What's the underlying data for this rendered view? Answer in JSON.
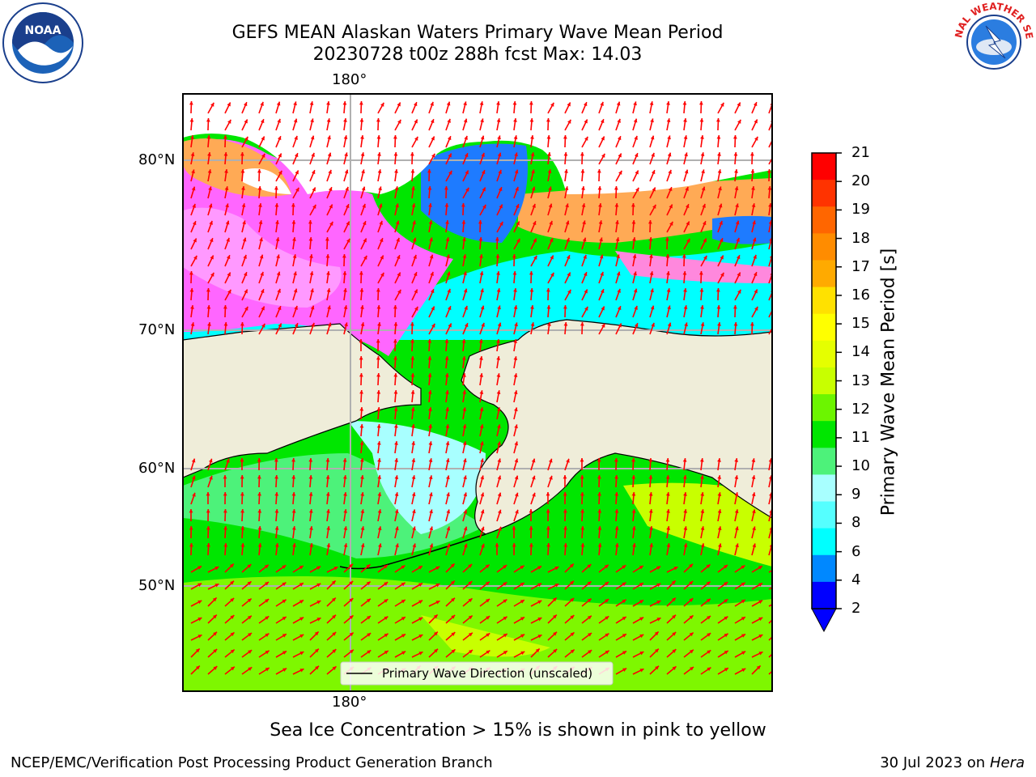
{
  "title": {
    "line1": "GEFS MEAN Alaskan Waters Primary Wave Mean Period",
    "line2": "20230728 t00z 288h fcst   Max: 14.03"
  },
  "logos": {
    "left": {
      "icon": "noaa-logo-icon",
      "text": "NOAA"
    },
    "right": {
      "icon": "nws-logo-icon",
      "text": "NATIONAL WEATHER SERVICE"
    }
  },
  "map": {
    "lon_top_label": "180°",
    "lon_bottom_label": "180°",
    "lat_labels": [
      "80°N",
      "70°N",
      "60°N",
      "50°N"
    ],
    "legend_label": "Primary Wave Direction (unscaled)",
    "arrow_color": "#ff0000",
    "land_color": "#efedd9",
    "grid_color": "#b0b0b0"
  },
  "colorbar": {
    "label": "Primary Wave Mean Period [s]",
    "ticks": [
      "21",
      "20",
      "19",
      "18",
      "17",
      "16",
      "15",
      "14",
      "13",
      "12",
      "11",
      "10",
      "9",
      "8",
      "6",
      "4",
      "2"
    ],
    "colors": [
      "#ff0000",
      "#ff3300",
      "#ff6600",
      "#ff8c00",
      "#ffaa00",
      "#ffe100",
      "#ffff00",
      "#e5ff00",
      "#c8ff00",
      "#6cf500",
      "#00e600",
      "#4df27a",
      "#a8ffff",
      "#55ffff",
      "#00ffff",
      "#0088ff",
      "#0000ff"
    ]
  },
  "caption": "Sea Ice Concentration > 15% is shown in pink to yellow",
  "footer": {
    "left": "NCEP/EMC/Verification Post Processing Product Generation Branch",
    "right_date": "30 Jul 2023 on ",
    "right_host": "Hera"
  }
}
